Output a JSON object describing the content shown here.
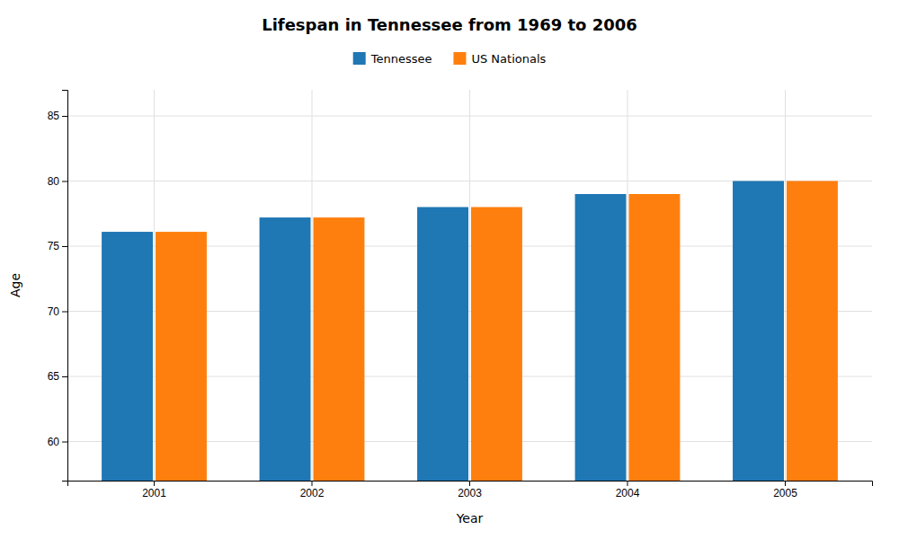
{
  "chart_data": {
    "type": "bar",
    "title": "Lifespan in Tennessee from 1969 to 2006",
    "xlabel": "Year",
    "ylabel": "Age",
    "categories": [
      "2001",
      "2002",
      "2003",
      "2004",
      "2005"
    ],
    "series": [
      {
        "name": "Tennessee",
        "values": [
          76.1,
          77.2,
          78.0,
          79.0,
          80.0
        ]
      },
      {
        "name": "US Nationals",
        "values": [
          76.1,
          77.2,
          78.0,
          79.0,
          80.0
        ]
      }
    ],
    "ylim": [
      57,
      87
    ],
    "yticks": [
      60,
      65,
      70,
      75,
      80,
      85
    ],
    "grid": true,
    "legend": "top"
  }
}
